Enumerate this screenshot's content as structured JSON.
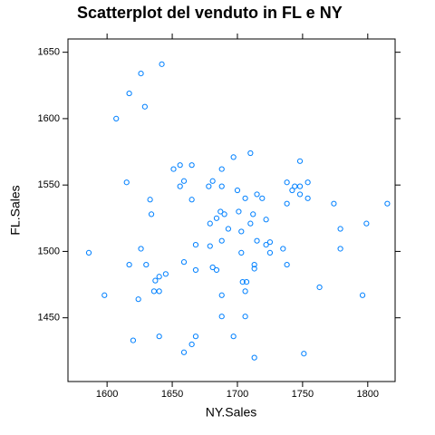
{
  "chart_data": {
    "type": "scatter",
    "title": "Scatterplot del venduto in FL e NY",
    "x_label": "NY.Sales",
    "y_label": "FL.Sales",
    "xlim": [
      1570,
      1821
    ],
    "ylim": [
      1402,
      1660
    ],
    "xticks": [
      1600,
      1650,
      1700,
      1750,
      1800
    ],
    "yticks": [
      1450,
      1500,
      1550,
      1600,
      1650
    ],
    "color": "#0080ff",
    "grid": false,
    "x": [
      1642,
      1626,
      1617,
      1629,
      1607,
      1615,
      1586,
      1598,
      1617,
      1626,
      1630,
      1633,
      1634,
      1640,
      1637,
      1636,
      1640,
      1645,
      1624,
      1620,
      1640,
      1651,
      1656,
      1665,
      1656,
      1659,
      1665,
      1659,
      1668,
      1668,
      1659,
      1665,
      1668,
      1678,
      1681,
      1688,
      1688,
      1679,
      1684,
      1687,
      1690,
      1693,
      1679,
      1688,
      1681,
      1684,
      1688,
      1688,
      1697,
      1700,
      1706,
      1710,
      1701,
      1710,
      1703,
      1712,
      1715,
      1703,
      1713,
      1713,
      1704,
      1707,
      1706,
      1706,
      1697,
      1713,
      1715,
      1719,
      1722,
      1725,
      1722,
      1725,
      1735,
      1738,
      1738,
      1742,
      1738,
      1744,
      1748,
      1748,
      1748,
      1754,
      1754,
      1751,
      1763,
      1774,
      1779,
      1779,
      1799,
      1796,
      1815
    ],
    "y": [
      1641,
      1634,
      1619,
      1609,
      1600,
      1552,
      1499,
      1467,
      1490,
      1502,
      1490,
      1539,
      1528,
      1481,
      1478,
      1470,
      1470,
      1483,
      1464,
      1433,
      1436,
      1562,
      1565,
      1565,
      1549,
      1553,
      1539,
      1492,
      1505,
      1486,
      1424,
      1430,
      1436,
      1549,
      1553,
      1562,
      1549,
      1521,
      1525,
      1530,
      1528,
      1517,
      1504,
      1508,
      1488,
      1486,
      1467,
      1451,
      1571,
      1546,
      1540,
      1574,
      1530,
      1521,
      1515,
      1528,
      1508,
      1499,
      1490,
      1487,
      1477,
      1477,
      1470,
      1451,
      1436,
      1420,
      1543,
      1540,
      1524,
      1507,
      1505,
      1499,
      1502,
      1490,
      1552,
      1546,
      1536,
      1549,
      1549,
      1543,
      1568,
      1552,
      1540,
      1423,
      1473,
      1536,
      1517,
      1502,
      1521,
      1467,
      1536
    ]
  }
}
